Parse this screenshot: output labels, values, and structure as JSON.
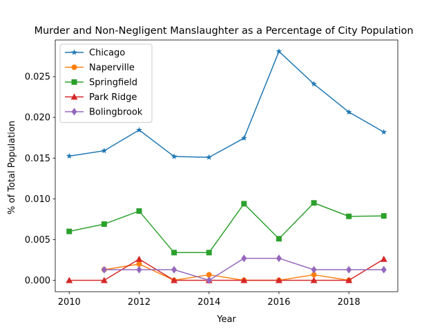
{
  "chart_data": {
    "type": "line",
    "title": "Murder and Non-Negligent Manslaughter as a Percentage of City Population",
    "xlabel": "Year",
    "ylabel": "% of Total Population",
    "xlim": [
      2009.6,
      2019.4
    ],
    "ylim": [
      -0.0014,
      0.0295
    ],
    "xticks": [
      2010,
      2012,
      2014,
      2016,
      2018
    ],
    "xtick_labels": [
      "2010",
      "2012",
      "2014",
      "2016",
      "2018"
    ],
    "yticks": [
      0.0,
      0.005,
      0.01,
      0.015,
      0.02,
      0.025
    ],
    "ytick_labels": [
      "0.000",
      "0.005",
      "0.010",
      "0.015",
      "0.020",
      "0.025"
    ],
    "grid": false,
    "legend": "top-left",
    "series": [
      {
        "name": "Chicago",
        "color": "#1f77b4",
        "marker": "star",
        "x": [
          2010,
          2011,
          2012,
          2013,
          2014,
          2015,
          2016,
          2017,
          2018,
          2019
        ],
        "y": [
          0.01525,
          0.0159,
          0.01845,
          0.0152,
          0.0151,
          0.01745,
          0.0281,
          0.0241,
          0.02065,
          0.0182
        ]
      },
      {
        "name": "Naperville",
        "color": "#ff7f0e",
        "marker": "circle",
        "x": [
          2011,
          2012,
          2013,
          2014,
          2015,
          2016,
          2017,
          2018,
          2019
        ],
        "y": [
          0.0013,
          0.002,
          0.0,
          0.00068,
          0.0,
          0.0,
          0.00068,
          0.0,
          null
        ]
      },
      {
        "name": "Springfield",
        "color": "#2ca02c",
        "marker": "square",
        "x": [
          2010,
          2011,
          2012,
          2013,
          2014,
          2015,
          2016,
          2017,
          2018,
          2019
        ],
        "y": [
          0.006,
          0.0069,
          0.0085,
          0.0034,
          0.0034,
          0.0094,
          0.0051,
          0.0095,
          0.00785,
          0.0079
        ]
      },
      {
        "name": "Park Ridge",
        "color": "#d62728",
        "marker": "triangle",
        "x": [
          2010,
          2011,
          2012,
          2013,
          2014,
          2015,
          2016,
          2017,
          2018,
          2019
        ],
        "y": [
          0.0,
          0.0,
          0.0026,
          0.0,
          0.0,
          0.0,
          0.0,
          0.0,
          0.0,
          0.0026
        ]
      },
      {
        "name": "Bolingbrook",
        "color": "#9467bd",
        "marker": "diamond",
        "x": [
          2011,
          2012,
          2013,
          2014,
          2015,
          2016,
          2017,
          2018,
          2019
        ],
        "y": [
          0.0013,
          0.0013,
          0.0013,
          0.0,
          0.0027,
          0.0027,
          0.0013,
          0.0013,
          0.0013
        ]
      }
    ]
  }
}
